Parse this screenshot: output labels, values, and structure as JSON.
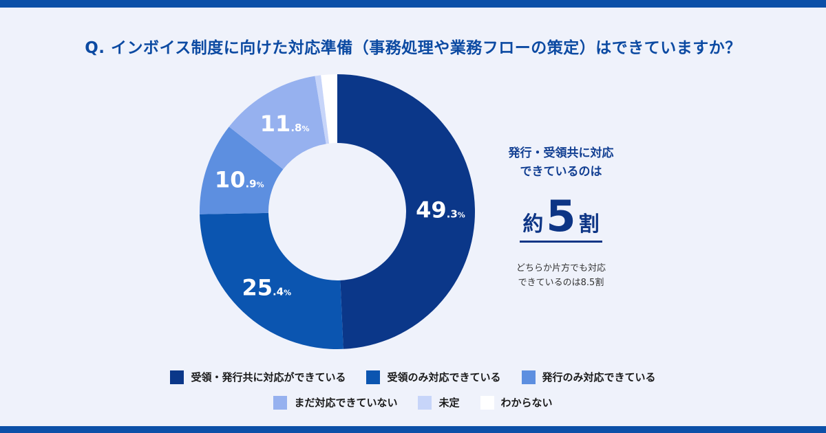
{
  "question": "Q. インボイス制度に向けた対応準備（事務処理や業務フローの策定）はできていますか？",
  "side": {
    "headline_line1": "発行・受領共に対応",
    "headline_line2": "できているのは",
    "big_prefix": "約",
    "big_number": "5",
    "big_suffix": "割",
    "sub_line1": "どちらか片方でも対応",
    "sub_line2": "できているのは8.5割"
  },
  "chart_data": {
    "type": "pie",
    "donut": true,
    "categories": [
      "受領・発行共に対応ができている",
      "受領のみ対応できている",
      "発行のみ対応できている",
      "まだ対応できていない",
      "未定",
      "わからない"
    ],
    "values": [
      49.3,
      25.4,
      10.9,
      11.8,
      0.7,
      1.9
    ],
    "value_labels": [
      {
        "int": "49",
        "dec": ".3",
        "unit": "%"
      },
      {
        "int": "25",
        "dec": ".4",
        "unit": "%"
      },
      {
        "int": "10",
        "dec": ".9",
        "unit": "%"
      },
      {
        "int": "11",
        "dec": ".8",
        "unit": "%"
      },
      null,
      null
    ],
    "colors": [
      "#0b3789",
      "#0b55b0",
      "#5d8fe0",
      "#96b1ef",
      "#c7d5f9",
      "#ffffff"
    ],
    "legend_position": "bottom"
  }
}
